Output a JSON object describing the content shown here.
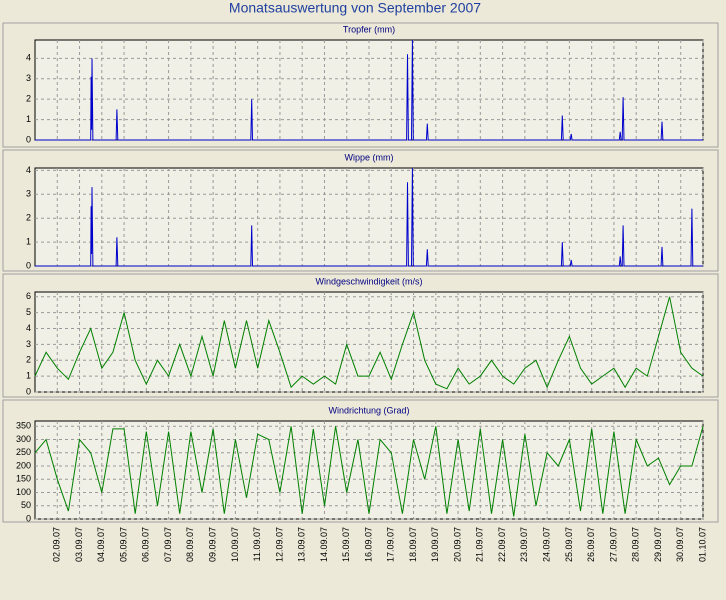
{
  "title": "Monatsauswertung von September 2007",
  "chart_data": [
    {
      "type": "line",
      "title": "Tropfer (mm)",
      "xlim": [
        0,
        30
      ],
      "ylim": [
        0,
        4.9
      ],
      "yticks": [
        0,
        1,
        2,
        3,
        4
      ],
      "grid": true,
      "x": [
        0,
        2.5,
        2.52,
        2.54,
        2.56,
        2.6,
        3.64,
        3.68,
        3.72,
        9.69,
        9.73,
        9.77,
        16.69,
        16.73,
        16.77,
        16.91,
        16.95,
        16.99,
        17.58,
        17.62,
        17.66,
        23.64,
        23.68,
        23.72,
        24.04,
        24.08,
        24.12,
        26.24,
        26.28,
        26.32,
        26.37,
        26.41,
        26.45,
        28.12,
        28.16,
        28.2,
        30
      ],
      "series": [
        {
          "color": "#0000cc",
          "values": [
            0,
            0,
            3.1,
            0.5,
            4.0,
            0,
            0,
            1.5,
            0,
            0,
            2.0,
            0,
            0,
            4.2,
            0,
            0,
            4.9,
            0,
            0,
            0.8,
            0,
            0,
            1.2,
            0,
            0,
            0.3,
            0,
            0,
            0.4,
            0,
            0,
            2.1,
            0,
            0,
            0.9,
            0,
            0
          ]
        }
      ]
    },
    {
      "type": "line",
      "title": "Wippe (mm)",
      "xlim": [
        0,
        30
      ],
      "ylim": [
        0,
        4.1
      ],
      "yticks": [
        0,
        1,
        2,
        3,
        4
      ],
      "grid": true,
      "x": [
        0,
        2.5,
        2.52,
        2.54,
        2.56,
        2.6,
        3.64,
        3.68,
        3.72,
        9.69,
        9.73,
        9.77,
        16.69,
        16.73,
        16.77,
        16.91,
        16.95,
        16.99,
        17.58,
        17.62,
        17.66,
        23.64,
        23.68,
        23.72,
        24.04,
        24.08,
        24.12,
        26.24,
        26.28,
        26.32,
        26.37,
        26.41,
        26.45,
        28.12,
        28.16,
        28.2,
        29.46,
        29.5,
        29.54,
        30
      ],
      "series": [
        {
          "color": "#0000cc",
          "values": [
            0,
            0,
            2.5,
            0.5,
            3.3,
            0,
            0,
            1.2,
            0,
            0,
            1.7,
            0,
            0,
            3.5,
            0,
            0,
            4.1,
            0,
            0,
            0.7,
            0,
            0,
            1.0,
            0,
            0,
            0.25,
            0,
            0,
            0.4,
            0,
            0,
            1.7,
            0,
            0,
            0.8,
            0,
            0,
            2.4,
            0,
            0
          ]
        }
      ]
    },
    {
      "type": "line",
      "title": "Windgeschwindigkeit (m/s)",
      "xlim": [
        0,
        30
      ],
      "ylim": [
        0,
        6.3
      ],
      "yticks": [
        0,
        1,
        2,
        3,
        4,
        5,
        6
      ],
      "grid": true,
      "x": [
        0,
        0.5,
        1,
        1.5,
        2,
        2.5,
        3,
        3.5,
        4,
        4.5,
        5,
        5.5,
        6,
        6.5,
        7,
        7.5,
        8,
        8.5,
        9,
        9.5,
        10,
        10.5,
        11,
        11.5,
        12,
        12.5,
        13,
        13.5,
        14,
        14.5,
        15,
        15.5,
        16,
        16.5,
        17,
        17.5,
        18,
        18.5,
        19,
        19.5,
        20,
        20.5,
        21,
        21.5,
        22,
        22.5,
        23,
        23.5,
        24,
        24.5,
        25,
        25.5,
        26,
        26.5,
        27,
        27.5,
        28,
        28.5,
        29,
        29.5,
        30
      ],
      "series": [
        {
          "color": "#008000",
          "values": [
            1.0,
            2.5,
            1.5,
            0.8,
            2.5,
            4.0,
            1.5,
            2.5,
            5.0,
            2.0,
            0.5,
            2.0,
            1.0,
            3.0,
            1.0,
            3.5,
            1.0,
            4.5,
            1.5,
            4.5,
            1.5,
            4.5,
            2.5,
            0.3,
            1.0,
            0.5,
            1.0,
            0.5,
            3.0,
            1.0,
            1.0,
            2.5,
            0.8,
            3.0,
            5.0,
            2.0,
            0.5,
            0.2,
            1.5,
            0.5,
            1.0,
            2.0,
            1.0,
            0.5,
            1.5,
            2.0,
            0.3,
            2.0,
            3.5,
            1.5,
            0.5,
            1.0,
            1.5,
            0.3,
            1.5,
            1.0,
            3.5,
            6.0,
            2.5,
            1.5,
            1.0
          ]
        }
      ]
    },
    {
      "type": "line",
      "title": "Windrichtung (Grad)",
      "xlim": [
        0,
        30
      ],
      "ylim": [
        0,
        370
      ],
      "yticks": [
        0,
        50,
        100,
        150,
        200,
        250,
        300,
        350
      ],
      "grid": true,
      "x": [
        0,
        0.5,
        1,
        1.5,
        2,
        2.5,
        3,
        3.5,
        4,
        4.5,
        5,
        5.5,
        6,
        6.5,
        7,
        7.5,
        8,
        8.5,
        9,
        9.5,
        10,
        10.5,
        11,
        11.5,
        12,
        12.5,
        13,
        13.5,
        14,
        14.5,
        15,
        15.5,
        16,
        16.5,
        17,
        17.5,
        18,
        18.5,
        19,
        19.5,
        20,
        20.5,
        21,
        21.5,
        22,
        22.5,
        23,
        23.5,
        24,
        24.5,
        25,
        25.5,
        26,
        26.5,
        27,
        27.5,
        28,
        28.5,
        29,
        29.5,
        30
      ],
      "series": [
        {
          "color": "#008000",
          "values": [
            250,
            300,
            150,
            30,
            300,
            250,
            100,
            340,
            340,
            20,
            330,
            50,
            330,
            20,
            330,
            100,
            340,
            20,
            300,
            80,
            320,
            300,
            100,
            350,
            20,
            340,
            50,
            350,
            100,
            300,
            20,
            300,
            250,
            20,
            300,
            150,
            350,
            20,
            300,
            30,
            340,
            20,
            300,
            10,
            320,
            50,
            250,
            200,
            300,
            30,
            340,
            20,
            330,
            20,
            300,
            200,
            230,
            130,
            200,
            200,
            350
          ]
        }
      ],
      "xticks": [
        {
          "value": 1,
          "label": "02.09.07"
        },
        {
          "value": 2,
          "label": "03.09.07"
        },
        {
          "value": 3,
          "label": "04.09.07"
        },
        {
          "value": 4,
          "label": "05.09.07"
        },
        {
          "value": 5,
          "label": "06.09.07"
        },
        {
          "value": 6,
          "label": "07.09.07"
        },
        {
          "value": 7,
          "label": "08.09.07"
        },
        {
          "value": 8,
          "label": "09.09.07"
        },
        {
          "value": 9,
          "label": "10.09.07"
        },
        {
          "value": 10,
          "label": "11.09.07"
        },
        {
          "value": 11,
          "label": "12.09.07"
        },
        {
          "value": 12,
          "label": "13.09.07"
        },
        {
          "value": 13,
          "label": "14.09.07"
        },
        {
          "value": 14,
          "label": "15.09.07"
        },
        {
          "value": 15,
          "label": "16.09.07"
        },
        {
          "value": 16,
          "label": "17.09.07"
        },
        {
          "value": 17,
          "label": "18.09.07"
        },
        {
          "value": 18,
          "label": "19.09.07"
        },
        {
          "value": 19,
          "label": "20.09.07"
        },
        {
          "value": 20,
          "label": "21.09.07"
        },
        {
          "value": 21,
          "label": "22.09.07"
        },
        {
          "value": 22,
          "label": "23.09.07"
        },
        {
          "value": 23,
          "label": "24.09.07"
        },
        {
          "value": 24,
          "label": "25.09.07"
        },
        {
          "value": 25,
          "label": "26.09.07"
        },
        {
          "value": 26,
          "label": "27.09.07"
        },
        {
          "value": 27,
          "label": "28.09.07"
        },
        {
          "value": 28,
          "label": "29.09.07"
        },
        {
          "value": 29,
          "label": "30.09.07"
        },
        {
          "value": 30,
          "label": "01.10.07"
        }
      ]
    }
  ]
}
